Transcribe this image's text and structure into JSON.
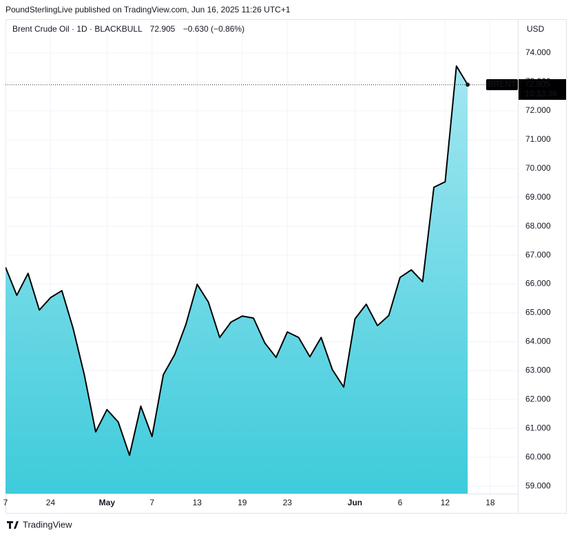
{
  "header": "PoundSterlingLive published on TradingView.com, Jun 16, 2025 11:26 UTC+1",
  "footer": "TradingView",
  "chart_data": {
    "type": "area",
    "title": "Brent Crude Oil · 1D · BLACKBULL",
    "change": "−0.630 (−0.86%)",
    "currency": "USD",
    "series_name": "BRENT",
    "last_time": "10:33:36",
    "color": "#000000",
    "fill_top": "#a3e7f1",
    "fill_bottom": "#3ecbdb",
    "categories": [
      "7",
      null,
      null,
      null,
      "24",
      null,
      null,
      null,
      null,
      "May",
      null,
      null,
      null,
      "7",
      null,
      null,
      null,
      "13",
      null,
      null,
      null,
      "19",
      null,
      null,
      null,
      "23",
      null,
      null,
      null,
      null,
      null,
      "Jun",
      null,
      null,
      null,
      "6",
      null,
      null,
      null,
      "12",
      null,
      null,
      null,
      "18"
    ],
    "values": [
      66.58,
      65.61,
      66.37,
      65.1,
      65.53,
      65.77,
      64.46,
      62.84,
      60.88,
      61.65,
      61.22,
      60.07,
      61.77,
      60.72,
      62.86,
      63.55,
      64.6,
      65.99,
      65.37,
      64.15,
      64.68,
      64.89,
      64.82,
      63.96,
      63.46,
      64.34,
      64.15,
      63.48,
      64.15,
      63.03,
      62.43,
      64.79,
      65.3,
      64.56,
      64.91,
      66.23,
      66.49,
      66.08,
      69.35,
      69.54,
      73.55,
      72.905,
      null,
      null
    ],
    "ylim": [
      58.74,
      75.17
    ],
    "yticks": [
      {
        "value": 59,
        "label": "59.000"
      },
      {
        "value": 60,
        "label": "60.000"
      },
      {
        "value": 61,
        "label": "61.000"
      },
      {
        "value": 62,
        "label": "62.000"
      },
      {
        "value": 63,
        "label": "63.000"
      },
      {
        "value": 64,
        "label": "64.000"
      },
      {
        "value": 65,
        "label": "65.000"
      },
      {
        "value": 66,
        "label": "66.000"
      },
      {
        "value": 67,
        "label": "67.000"
      },
      {
        "value": 68,
        "label": "68.000"
      },
      {
        "value": 69,
        "label": "69.000"
      },
      {
        "value": 70,
        "label": "70.000"
      },
      {
        "value": 71,
        "label": "71.000"
      },
      {
        "value": 72,
        "label": "72.000"
      },
      {
        "value": 73,
        "label": "73.000"
      },
      {
        "value": 74,
        "label": "74.000"
      }
    ],
    "grid": true
  }
}
